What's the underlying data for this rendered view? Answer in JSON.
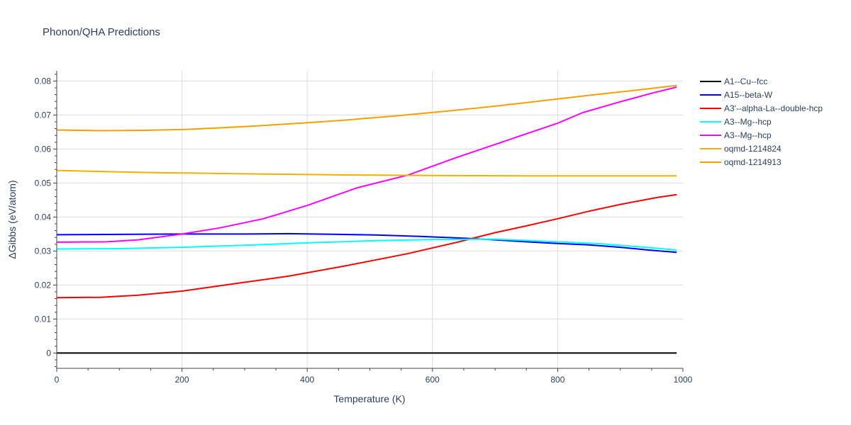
{
  "chart_data": {
    "type": "line",
    "title": "Phonon/QHA Predictions",
    "xlabel": "Temperature (K)",
    "ylabel": "ΔGibbs (eV/atom)",
    "xlim": [
      0,
      1000
    ],
    "ylim": [
      -0.0045,
      0.083
    ],
    "x_ticks": [
      0,
      200,
      400,
      600,
      800,
      1000
    ],
    "x_tick_labels": [
      "0",
      "200",
      "400",
      "600",
      "800",
      "1000"
    ],
    "y_ticks": [
      0,
      0.01,
      0.02,
      0.03,
      0.04,
      0.05,
      0.06,
      0.07,
      0.08
    ],
    "y_tick_labels": [
      "0",
      "0.01",
      "0.02",
      "0.03",
      "0.04",
      "0.05",
      "0.06",
      "0.07",
      "0.08"
    ],
    "grid": true,
    "legend_position": "right",
    "series": [
      {
        "name": "A1--Cu--fcc",
        "color": "#000000",
        "points": [
          [
            0,
            0
          ],
          [
            990,
            0
          ]
        ]
      },
      {
        "name": "A15--beta-W",
        "color": "#0000ff",
        "points": [
          [
            0,
            0.0348
          ],
          [
            100,
            0.0349
          ],
          [
            200,
            0.035
          ],
          [
            300,
            0.035
          ],
          [
            370,
            0.0351
          ],
          [
            450,
            0.0349
          ],
          [
            510,
            0.0347
          ],
          [
            580,
            0.0343
          ],
          [
            650,
            0.0338
          ],
          [
            700,
            0.0333
          ],
          [
            750,
            0.0327
          ],
          [
            800,
            0.0322
          ],
          [
            850,
            0.0318
          ],
          [
            900,
            0.0311
          ],
          [
            950,
            0.0302
          ],
          [
            990,
            0.0296
          ]
        ]
      },
      {
        "name": "A3'--alpha-La--double-hcp",
        "color": "#ff0000",
        "points": [
          [
            0,
            0.0163
          ],
          [
            70,
            0.0164
          ],
          [
            130,
            0.017
          ],
          [
            200,
            0.0182
          ],
          [
            280,
            0.0203
          ],
          [
            370,
            0.0226
          ],
          [
            460,
            0.0256
          ],
          [
            560,
            0.0292
          ],
          [
            640,
            0.0326
          ],
          [
            700,
            0.0354
          ],
          [
            750,
            0.0374
          ],
          [
            800,
            0.0395
          ],
          [
            850,
            0.0417
          ],
          [
            900,
            0.0437
          ],
          [
            960,
            0.0458
          ],
          [
            990,
            0.0466
          ]
        ]
      },
      {
        "name": "A3--Mg--hcp",
        "color": "#00ffff",
        "points": [
          [
            0,
            0.0306
          ],
          [
            100,
            0.0307
          ],
          [
            200,
            0.0311
          ],
          [
            300,
            0.0317
          ],
          [
            400,
            0.0324
          ],
          [
            500,
            0.033
          ],
          [
            600,
            0.0334
          ],
          [
            700,
            0.0335
          ],
          [
            800,
            0.0327
          ],
          [
            870,
            0.0321
          ],
          [
            940,
            0.0311
          ],
          [
            990,
            0.0303
          ]
        ]
      },
      {
        "name": "A3--Mg--hcp",
        "color": "#ff00ff",
        "points": [
          [
            0,
            0.0326
          ],
          [
            80,
            0.0327
          ],
          [
            130,
            0.0333
          ],
          [
            200,
            0.035
          ],
          [
            260,
            0.0368
          ],
          [
            330,
            0.0395
          ],
          [
            400,
            0.0434
          ],
          [
            480,
            0.0486
          ],
          [
            560,
            0.0523
          ],
          [
            640,
            0.0576
          ],
          [
            720,
            0.0626
          ],
          [
            800,
            0.0676
          ],
          [
            840,
            0.0707
          ],
          [
            900,
            0.0739
          ],
          [
            950,
            0.0764
          ],
          [
            990,
            0.0782
          ]
        ]
      },
      {
        "name": "oqmd-1214824",
        "color": "#f0b000",
        "points": [
          [
            0,
            0.0537
          ],
          [
            140,
            0.0531
          ],
          [
            300,
            0.0527
          ],
          [
            450,
            0.0524
          ],
          [
            600,
            0.0522
          ],
          [
            750,
            0.0521
          ],
          [
            900,
            0.0521
          ],
          [
            950,
            0.0521
          ],
          [
            990,
            0.0521
          ]
        ]
      },
      {
        "name": "oqmd-1214913",
        "color": "#f5a000",
        "points": [
          [
            0,
            0.0656
          ],
          [
            70,
            0.0654
          ],
          [
            140,
            0.0655
          ],
          [
            210,
            0.0658
          ],
          [
            300,
            0.0666
          ],
          [
            390,
            0.0676
          ],
          [
            460,
            0.0685
          ],
          [
            540,
            0.0697
          ],
          [
            620,
            0.0711
          ],
          [
            700,
            0.0726
          ],
          [
            780,
            0.0743
          ],
          [
            860,
            0.076
          ],
          [
            930,
            0.0774
          ],
          [
            990,
            0.0787
          ]
        ]
      }
    ]
  }
}
